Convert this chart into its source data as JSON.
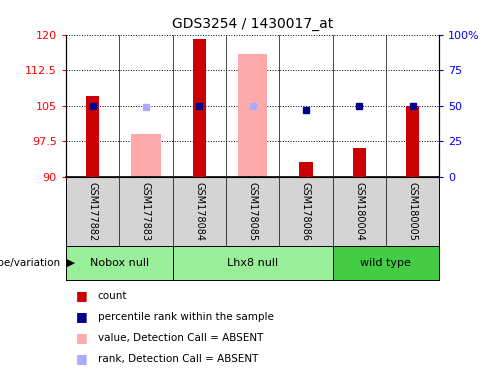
{
  "title": "GDS3254 / 1430017_at",
  "samples": [
    "GSM177882",
    "GSM177883",
    "GSM178084",
    "GSM178085",
    "GSM178086",
    "GSM180004",
    "GSM180005"
  ],
  "red_bars": [
    107.0,
    null,
    119.0,
    null,
    93.0,
    96.0,
    105.0
  ],
  "pink_bars": [
    null,
    99.0,
    null,
    116.0,
    null,
    null,
    null
  ],
  "blue_squares": [
    50.0,
    null,
    50.0,
    null,
    47.0,
    50.0,
    50.0
  ],
  "light_blue_squares": [
    null,
    49.0,
    null,
    50.0,
    null,
    null,
    null
  ],
  "ylim_left": [
    90,
    120
  ],
  "ylim_right": [
    0,
    100
  ],
  "yticks_left": [
    90,
    97.5,
    105,
    112.5,
    120
  ],
  "yticks_right": [
    0,
    25,
    50,
    75,
    100
  ],
  "group_spans": [
    {
      "start": 0,
      "end": 2,
      "label": "Nobox null",
      "color": "#99ee99"
    },
    {
      "start": 2,
      "end": 5,
      "label": "Lhx8 null",
      "color": "#99ee99"
    },
    {
      "start": 5,
      "end": 7,
      "label": "wild type",
      "color": "#44cc44"
    }
  ],
  "red_color": "#cc0000",
  "pink_color": "#ffaaaa",
  "blue_color": "#00008B",
  "light_blue_color": "#aaaaff",
  "gray_bg": "#d4d4d4",
  "legend_entries": [
    {
      "color": "#cc0000",
      "label": "count"
    },
    {
      "color": "#00008B",
      "label": "percentile rank within the sample"
    },
    {
      "color": "#ffaaaa",
      "label": "value, Detection Call = ABSENT"
    },
    {
      "color": "#aaaaff",
      "label": "rank, Detection Call = ABSENT"
    }
  ]
}
